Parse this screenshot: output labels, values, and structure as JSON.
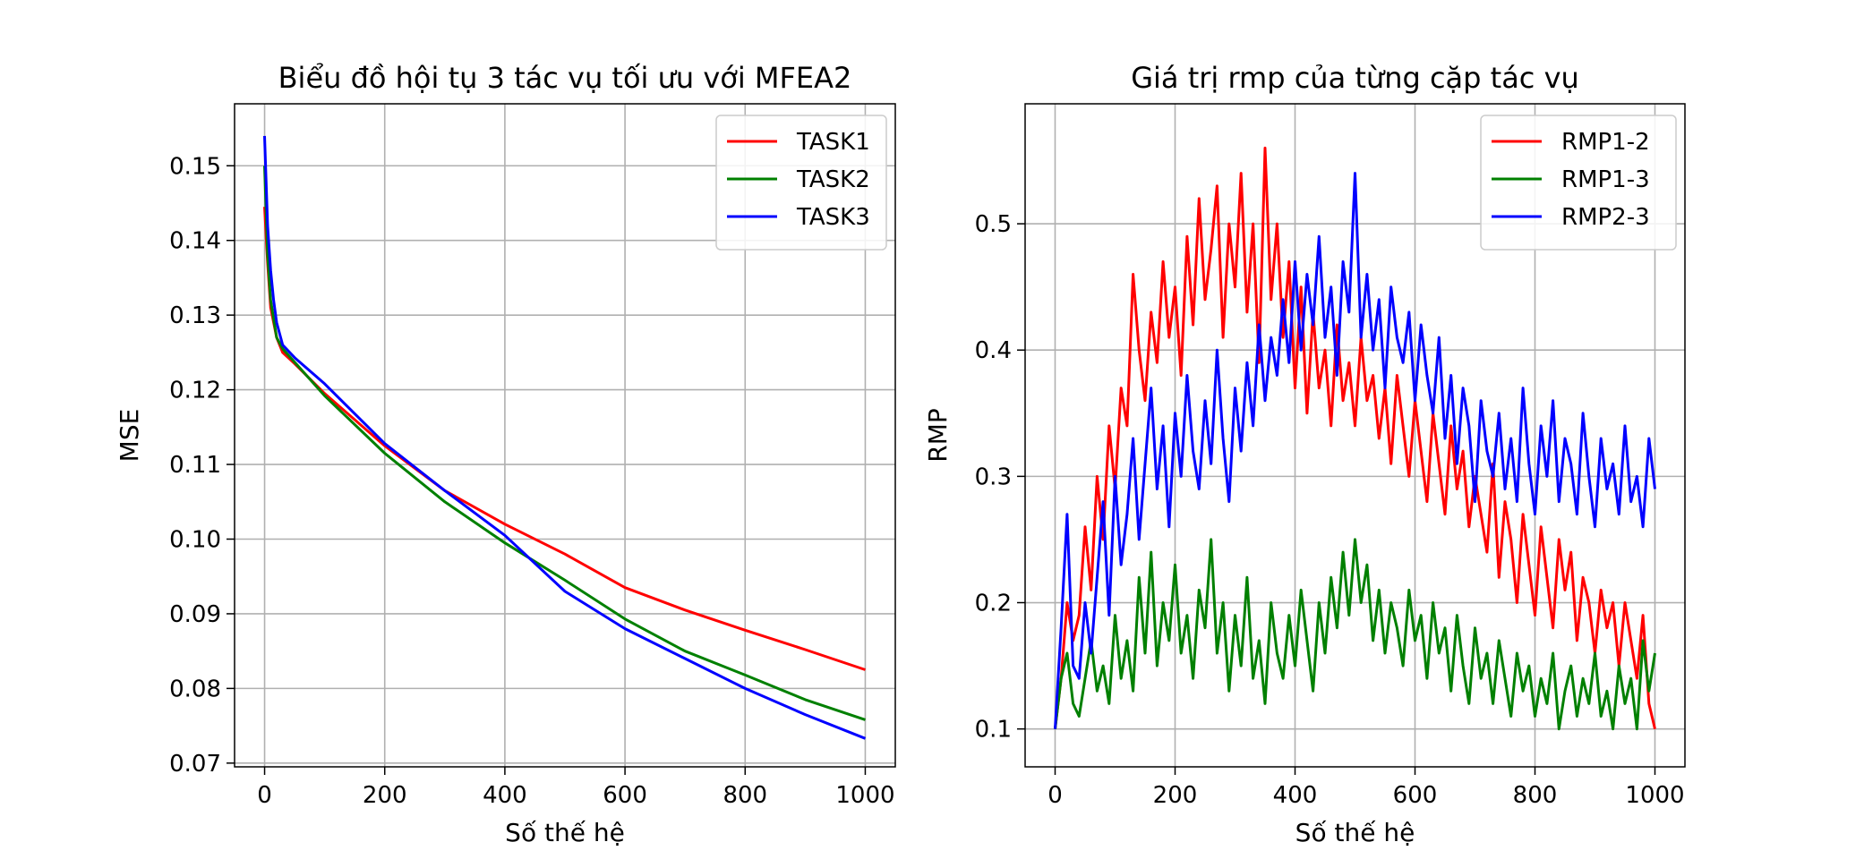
{
  "charts": [
    {
      "id": "left",
      "type": "line",
      "title": "Biểu đồ hội tụ 3 tác vụ tối ưu với MFEA2",
      "xlabel": "Số thế hệ",
      "ylabel": "MSE",
      "xlim": [
        -50,
        1050
      ],
      "ylim": [
        0.0695,
        0.1583
      ],
      "xticks": [
        0,
        200,
        400,
        600,
        800,
        1000
      ],
      "xtick_labels": [
        "0",
        "200",
        "400",
        "600",
        "800",
        "1000"
      ],
      "yticks": [
        0.07,
        0.08,
        0.09,
        0.1,
        0.11,
        0.12,
        0.13,
        0.14,
        0.15
      ],
      "ytick_labels": [
        "0.07",
        "0.08",
        "0.09",
        "0.10",
        "0.11",
        "0.12",
        "0.13",
        "0.14",
        "0.15"
      ],
      "grid": true,
      "legend_position": "upper right",
      "series": [
        {
          "name": "TASK1",
          "color": "#ff0000",
          "x": [
            0,
            5,
            10,
            20,
            30,
            50,
            100,
            200,
            300,
            400,
            500,
            600,
            700,
            800,
            900,
            1000
          ],
          "y": [
            0.1445,
            0.137,
            0.131,
            0.127,
            0.125,
            0.1235,
            0.1195,
            0.1125,
            0.1065,
            0.102,
            0.098,
            0.0935,
            0.0905,
            0.0878,
            0.0852,
            0.0825
          ]
        },
        {
          "name": "TASK2",
          "color": "#008000",
          "x": [
            0,
            5,
            10,
            20,
            30,
            50,
            100,
            200,
            300,
            400,
            500,
            600,
            700,
            800,
            900,
            1000
          ],
          "y": [
            0.15,
            0.138,
            0.132,
            0.127,
            0.1255,
            0.1237,
            0.1192,
            0.1115,
            0.105,
            0.0995,
            0.0945,
            0.0893,
            0.085,
            0.0818,
            0.0785,
            0.0758
          ]
        },
        {
          "name": "TASK3",
          "color": "#0000ff",
          "x": [
            0,
            5,
            10,
            15,
            20,
            30,
            50,
            100,
            200,
            300,
            400,
            500,
            600,
            700,
            800,
            900,
            1000
          ],
          "y": [
            0.154,
            0.142,
            0.136,
            0.132,
            0.129,
            0.126,
            0.1243,
            0.1208,
            0.1128,
            0.1065,
            0.1005,
            0.093,
            0.088,
            0.084,
            0.08,
            0.0765,
            0.0733
          ]
        }
      ]
    },
    {
      "id": "right",
      "type": "line",
      "title": "Giá trị rmp của từng cặp tác vụ",
      "xlabel": "Số thế hệ",
      "ylabel": "RMP",
      "xlim": [
        -50,
        1050
      ],
      "ylim": [
        0.07,
        0.595
      ],
      "xticks": [
        0,
        200,
        400,
        600,
        800,
        1000
      ],
      "xtick_labels": [
        "0",
        "200",
        "400",
        "600",
        "800",
        "1000"
      ],
      "yticks": [
        0.1,
        0.2,
        0.3,
        0.4,
        0.5
      ],
      "ytick_labels": [
        "0.1",
        "0.2",
        "0.3",
        "0.4",
        "0.5"
      ],
      "grid": true,
      "legend_position": "upper right",
      "series": [
        {
          "name": "RMP1-2",
          "color": "#ff0000",
          "x": [
            0,
            10,
            20,
            30,
            40,
            50,
            60,
            70,
            80,
            90,
            100,
            110,
            120,
            130,
            140,
            150,
            160,
            170,
            180,
            190,
            200,
            210,
            220,
            230,
            240,
            250,
            260,
            270,
            280,
            290,
            300,
            310,
            320,
            330,
            340,
            350,
            360,
            370,
            380,
            390,
            400,
            410,
            420,
            430,
            440,
            450,
            460,
            470,
            480,
            490,
            500,
            510,
            520,
            530,
            540,
            550,
            560,
            570,
            580,
            590,
            600,
            610,
            620,
            630,
            640,
            650,
            660,
            670,
            680,
            690,
            700,
            710,
            720,
            730,
            740,
            750,
            760,
            770,
            780,
            790,
            800,
            810,
            820,
            830,
            840,
            850,
            860,
            870,
            880,
            890,
            900,
            910,
            920,
            930,
            940,
            950,
            960,
            970,
            980,
            990,
            1000
          ],
          "y": [
            0.1,
            0.14,
            0.2,
            0.17,
            0.19,
            0.26,
            0.21,
            0.3,
            0.25,
            0.34,
            0.29,
            0.37,
            0.34,
            0.46,
            0.4,
            0.36,
            0.43,
            0.39,
            0.47,
            0.41,
            0.45,
            0.38,
            0.49,
            0.42,
            0.52,
            0.44,
            0.48,
            0.53,
            0.41,
            0.5,
            0.45,
            0.54,
            0.43,
            0.5,
            0.39,
            0.56,
            0.44,
            0.5,
            0.41,
            0.47,
            0.37,
            0.45,
            0.35,
            0.43,
            0.37,
            0.4,
            0.34,
            0.42,
            0.36,
            0.39,
            0.34,
            0.41,
            0.36,
            0.38,
            0.33,
            0.37,
            0.31,
            0.38,
            0.34,
            0.3,
            0.36,
            0.32,
            0.28,
            0.35,
            0.31,
            0.27,
            0.34,
            0.29,
            0.32,
            0.26,
            0.3,
            0.27,
            0.24,
            0.31,
            0.22,
            0.28,
            0.25,
            0.2,
            0.27,
            0.23,
            0.19,
            0.26,
            0.22,
            0.18,
            0.25,
            0.21,
            0.24,
            0.17,
            0.22,
            0.2,
            0.16,
            0.21,
            0.18,
            0.2,
            0.15,
            0.2,
            0.17,
            0.14,
            0.19,
            0.12,
            0.1
          ]
        },
        {
          "name": "RMP1-3",
          "color": "#008000",
          "x": [
            0,
            10,
            20,
            30,
            40,
            50,
            60,
            70,
            80,
            90,
            100,
            110,
            120,
            130,
            140,
            150,
            160,
            170,
            180,
            190,
            200,
            210,
            220,
            230,
            240,
            250,
            260,
            270,
            280,
            290,
            300,
            310,
            320,
            330,
            340,
            350,
            360,
            370,
            380,
            390,
            400,
            410,
            420,
            430,
            440,
            450,
            460,
            470,
            480,
            490,
            500,
            510,
            520,
            530,
            540,
            550,
            560,
            570,
            580,
            590,
            600,
            610,
            620,
            630,
            640,
            650,
            660,
            670,
            680,
            690,
            700,
            710,
            720,
            730,
            740,
            750,
            760,
            770,
            780,
            790,
            800,
            810,
            820,
            830,
            840,
            850,
            860,
            870,
            880,
            890,
            900,
            910,
            920,
            930,
            940,
            950,
            960,
            970,
            980,
            990,
            1000
          ],
          "y": [
            0.1,
            0.14,
            0.16,
            0.12,
            0.11,
            0.14,
            0.17,
            0.13,
            0.15,
            0.12,
            0.19,
            0.14,
            0.17,
            0.13,
            0.22,
            0.16,
            0.24,
            0.15,
            0.2,
            0.17,
            0.23,
            0.16,
            0.19,
            0.14,
            0.21,
            0.18,
            0.25,
            0.16,
            0.2,
            0.13,
            0.19,
            0.15,
            0.22,
            0.14,
            0.17,
            0.12,
            0.2,
            0.16,
            0.14,
            0.19,
            0.15,
            0.21,
            0.17,
            0.13,
            0.2,
            0.16,
            0.22,
            0.18,
            0.24,
            0.19,
            0.25,
            0.2,
            0.23,
            0.17,
            0.21,
            0.16,
            0.2,
            0.18,
            0.15,
            0.21,
            0.17,
            0.19,
            0.14,
            0.2,
            0.16,
            0.18,
            0.13,
            0.19,
            0.15,
            0.12,
            0.18,
            0.14,
            0.16,
            0.12,
            0.17,
            0.14,
            0.11,
            0.16,
            0.13,
            0.15,
            0.11,
            0.14,
            0.12,
            0.16,
            0.1,
            0.13,
            0.15,
            0.11,
            0.14,
            0.12,
            0.16,
            0.11,
            0.13,
            0.1,
            0.15,
            0.12,
            0.14,
            0.1,
            0.17,
            0.13,
            0.16
          ]
        },
        {
          "name": "RMP2-3",
          "color": "#0000ff",
          "x": [
            0,
            10,
            20,
            30,
            40,
            50,
            60,
            70,
            80,
            90,
            100,
            110,
            120,
            130,
            140,
            150,
            160,
            170,
            180,
            190,
            200,
            210,
            220,
            230,
            240,
            250,
            260,
            270,
            280,
            290,
            300,
            310,
            320,
            330,
            340,
            350,
            360,
            370,
            380,
            390,
            400,
            410,
            420,
            430,
            440,
            450,
            460,
            470,
            480,
            490,
            500,
            510,
            520,
            530,
            540,
            550,
            560,
            570,
            580,
            590,
            600,
            610,
            620,
            630,
            640,
            650,
            660,
            670,
            680,
            690,
            700,
            710,
            720,
            730,
            740,
            750,
            760,
            770,
            780,
            790,
            800,
            810,
            820,
            830,
            840,
            850,
            860,
            870,
            880,
            890,
            900,
            910,
            920,
            930,
            940,
            950,
            960,
            970,
            980,
            990,
            1000
          ],
          "y": [
            0.1,
            0.18,
            0.27,
            0.15,
            0.14,
            0.2,
            0.16,
            0.22,
            0.28,
            0.19,
            0.3,
            0.23,
            0.27,
            0.33,
            0.25,
            0.31,
            0.37,
            0.29,
            0.34,
            0.26,
            0.35,
            0.3,
            0.38,
            0.32,
            0.29,
            0.36,
            0.31,
            0.4,
            0.33,
            0.28,
            0.37,
            0.32,
            0.39,
            0.34,
            0.42,
            0.36,
            0.41,
            0.38,
            0.44,
            0.39,
            0.47,
            0.4,
            0.46,
            0.42,
            0.49,
            0.41,
            0.45,
            0.38,
            0.47,
            0.43,
            0.54,
            0.41,
            0.46,
            0.4,
            0.44,
            0.37,
            0.45,
            0.41,
            0.39,
            0.43,
            0.36,
            0.42,
            0.38,
            0.35,
            0.41,
            0.33,
            0.38,
            0.31,
            0.37,
            0.34,
            0.28,
            0.36,
            0.32,
            0.3,
            0.35,
            0.29,
            0.33,
            0.28,
            0.37,
            0.31,
            0.27,
            0.34,
            0.3,
            0.36,
            0.28,
            0.33,
            0.31,
            0.27,
            0.35,
            0.3,
            0.26,
            0.33,
            0.29,
            0.31,
            0.27,
            0.34,
            0.28,
            0.3,
            0.26,
            0.33,
            0.29
          ]
        }
      ]
    }
  ]
}
